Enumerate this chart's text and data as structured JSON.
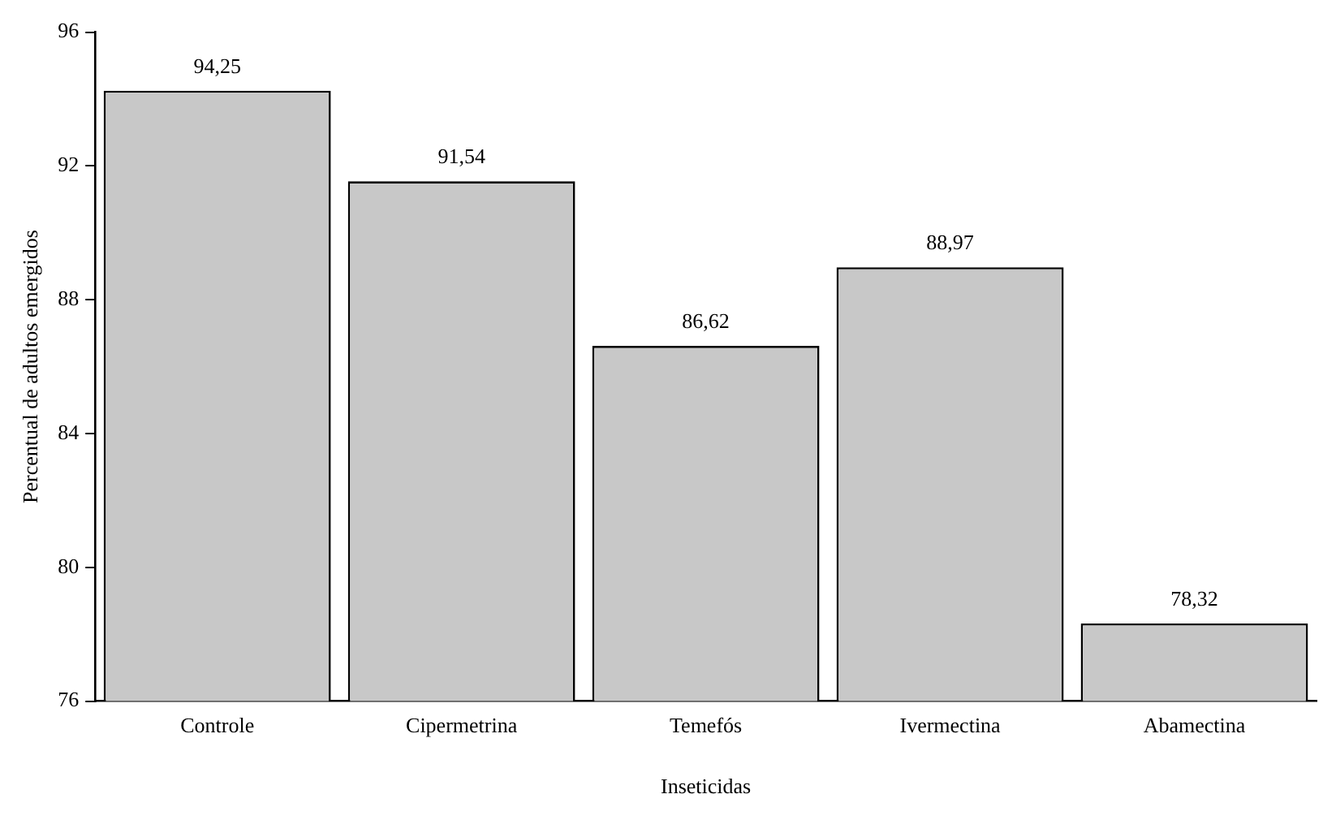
{
  "chart_data": {
    "type": "bar",
    "xlabel": "Inseticidas",
    "ylabel": "Percentual de adultos emergidos",
    "categories": [
      "Controle",
      "Cipermetrina",
      "Temefós",
      "Ivermectina",
      "Abamectina"
    ],
    "values": [
      94.25,
      91.54,
      86.62,
      88.97,
      78.32
    ],
    "value_labels": [
      "94,25",
      "91,54",
      "86,62",
      "88,97",
      "78,32"
    ],
    "color": "#c8c8c8",
    "ylim": [
      76,
      96
    ],
    "yticks": [
      76,
      80,
      84,
      88,
      92,
      96
    ],
    "grid": false,
    "legend": false
  }
}
